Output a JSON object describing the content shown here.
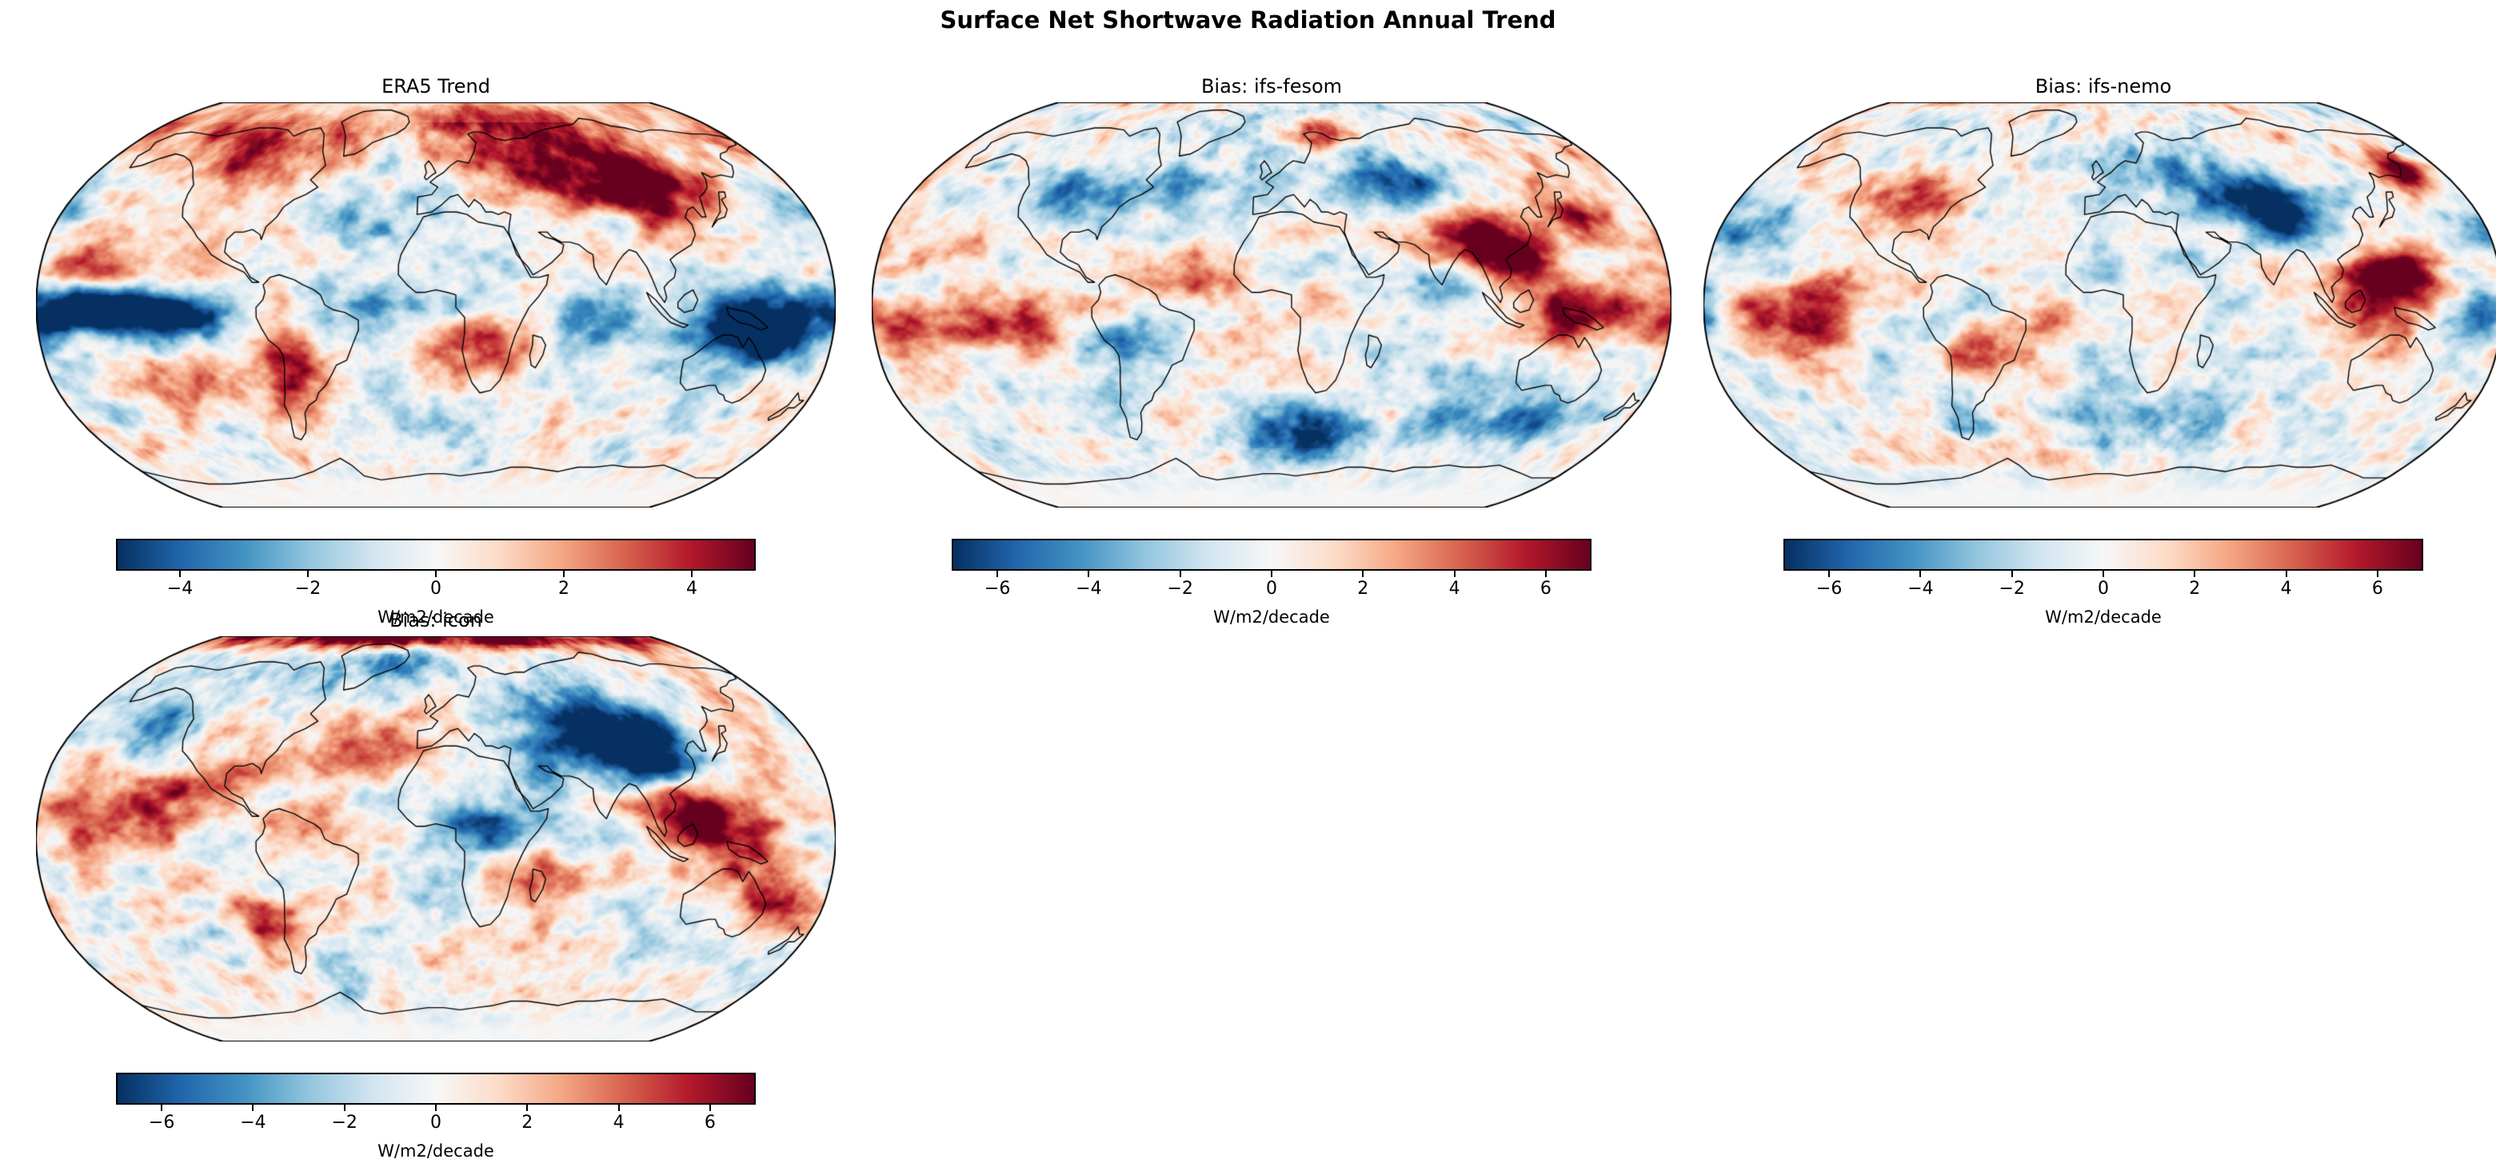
{
  "figure": {
    "suptitle": "Surface Net Shortwave Radiation Annual Trend"
  },
  "chart_data": [
    {
      "id": "era5",
      "type": "heatmap",
      "title": "ERA5 Trend",
      "projection": "Robinson",
      "colormap": "RdBu_r",
      "units": "W/m2/decade",
      "vmin": -5,
      "vmax": 5,
      "colorbar_ticks": [
        -4,
        -2,
        0,
        2,
        4
      ],
      "tick_labels": [
        "−4",
        "−2",
        "0",
        "2",
        "4"
      ],
      "notable_features": "Strong negative (blue) band along equatorial Pacific and Maritime Continent; positive (red) trend over Eurasia, Arctic, western North America, Andes/Chile and southern Africa; pale Antarctica"
    },
    {
      "id": "ifs-fesom",
      "type": "heatmap",
      "title": "Bias: ifs-fesom",
      "projection": "Robinson",
      "colormap": "RdBu_r",
      "units": "W/m2/decade",
      "vmin": -7,
      "vmax": 7,
      "colorbar_ticks": [
        -6,
        -4,
        -2,
        0,
        2,
        4,
        6
      ],
      "tick_labels": [
        "−6",
        "−4",
        "−2",
        "0",
        "2",
        "4",
        "6"
      ],
      "notable_features": "Dark red over Tibet/Southeast Asia and Maritime Continent, red equatorial Pacific band, blue over high-latitude Eurasia, blue Southern Ocean south of Africa and Australia"
    },
    {
      "id": "ifs-nemo",
      "type": "heatmap",
      "title": "Bias: ifs-nemo",
      "projection": "Robinson",
      "colormap": "RdBu_r",
      "units": "W/m2/decade",
      "vmin": -7,
      "vmax": 7,
      "colorbar_ticks": [
        -6,
        -4,
        -2,
        0,
        2,
        4,
        6
      ],
      "tick_labels": [
        "−6",
        "−4",
        "−2",
        "0",
        "2",
        "4",
        "6"
      ],
      "notable_features": "Dark red over Maritime Continent, Philippines and Kamchatka region, red equatorial Atlantic and Pacific bands, blue over central/east Asia, blue southern South America and west equatorial Pacific patch"
    },
    {
      "id": "icon",
      "type": "heatmap",
      "title": "Bias: icon",
      "projection": "Robinson",
      "colormap": "RdBu_r",
      "units": "W/m2/decade",
      "vmin": -7,
      "vmax": 7,
      "colorbar_ticks": [
        -6,
        -4,
        -2,
        0,
        2,
        4,
        6
      ],
      "tick_labels": [
        "−6",
        "−4",
        "−2",
        "0",
        "2",
        "4",
        "6"
      ],
      "notable_features": "Large dark blue blob over central/east Asia and Tibet, dark red over Southeast Asia and Maritime Continent, red tropical Pacific and Atlantic bands, blue central Africa, dark red strip along Arctic top edge"
    }
  ],
  "colors": {
    "background": "#ffffff",
    "coastline": "#000000",
    "map_border": "#000000",
    "colormap_stops": [
      "#053061",
      "#2166ac",
      "#4393c3",
      "#92c5de",
      "#d1e5f0",
      "#f7f7f7",
      "#fddbc7",
      "#f4a582",
      "#d6604d",
      "#b2182b",
      "#67001f"
    ]
  }
}
